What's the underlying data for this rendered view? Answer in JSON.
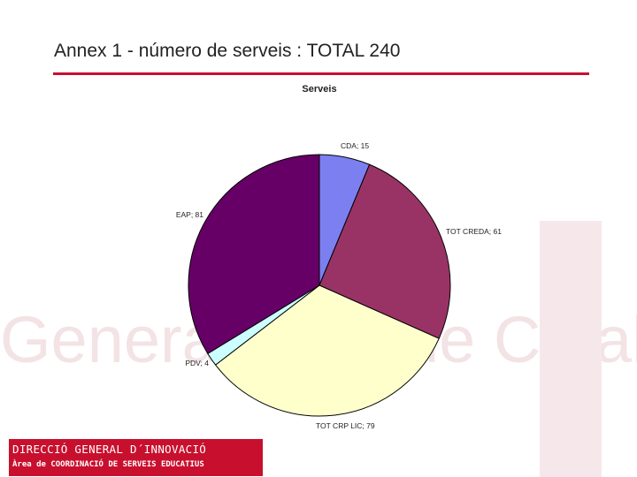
{
  "page": {
    "title": "Annex 1 - número de serveis : TOTAL 240",
    "accent_color": "#c8102e"
  },
  "footer": {
    "line1": "DIRECCIÓ GENERAL D´INNOVACIÓ",
    "line2": "Àrea de COORDINACIÓ DE SERVEIS EDUCATIUS",
    "background_color": "#c8102e"
  },
  "watermark": {
    "texts": [
      "Generalitat",
      "de Catalunya"
    ],
    "color": "#f3e1e3"
  },
  "chart_data": {
    "type": "pie",
    "title": "Serveis",
    "slices": [
      {
        "label": "CDA",
        "value": 15,
        "color": "#7b7ff0",
        "label_text": "CDA; 15"
      },
      {
        "label": "TOT CREDA",
        "value": 61,
        "color": "#993366",
        "label_text": "TOT CREDA; 61"
      },
      {
        "label": "TOT CRP LIC",
        "value": 79,
        "color": "#ffffcc",
        "label_text": "TOT CRP LIC; 79"
      },
      {
        "label": "PDV",
        "value": 4,
        "color": "#ccffff",
        "label_text": "PDV; 4"
      },
      {
        "label": "EAP",
        "value": 81,
        "color": "#660066",
        "label_text": "EAP; 81"
      }
    ],
    "total": 240,
    "legend": "none",
    "start_angle": "12 o'clock",
    "direction": "clockwise"
  }
}
